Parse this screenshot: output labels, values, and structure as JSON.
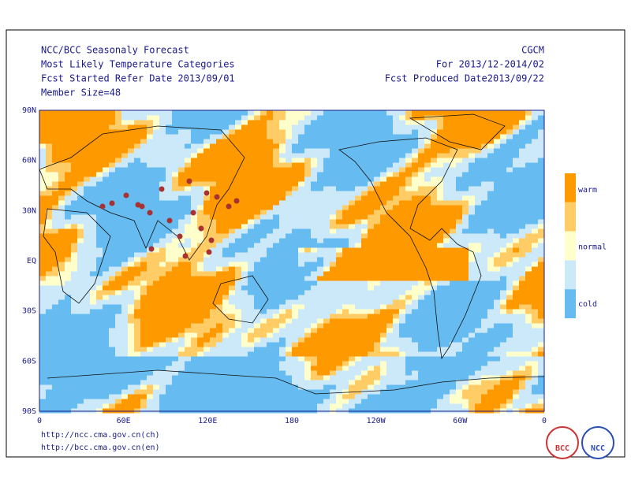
{
  "header": {
    "left": [
      "NCC/BCC Seasonaly Forecast",
      "Most Likely Temperature Categories",
      "Fcst Started Refer Date 2013/09/01",
      "Member Size=48"
    ],
    "right": [
      "CGCM",
      "For 2013/12-2014/02",
      "Fcst Produced Date2013/09/22"
    ]
  },
  "map": {
    "lat_ticks": [
      "90N",
      "60N",
      "30N",
      "EQ",
      "30S",
      "60S",
      "90S"
    ],
    "lon_ticks": [
      "0",
      "60E",
      "120E",
      "180",
      "120W",
      "60W",
      "0"
    ]
  },
  "legend": {
    "colors": [
      "#ff9900",
      "#ffcc66",
      "#ffffcc",
      "#cce9f9",
      "#66bbf0"
    ],
    "labels": [
      "warm",
      "normal",
      "cold"
    ]
  },
  "footer": {
    "links": [
      "http://ncc.cma.gov.cn(ch)",
      "http://bcc.cma.gov.cn(en)"
    ],
    "logos": [
      "BCC",
      "NCC"
    ]
  }
}
